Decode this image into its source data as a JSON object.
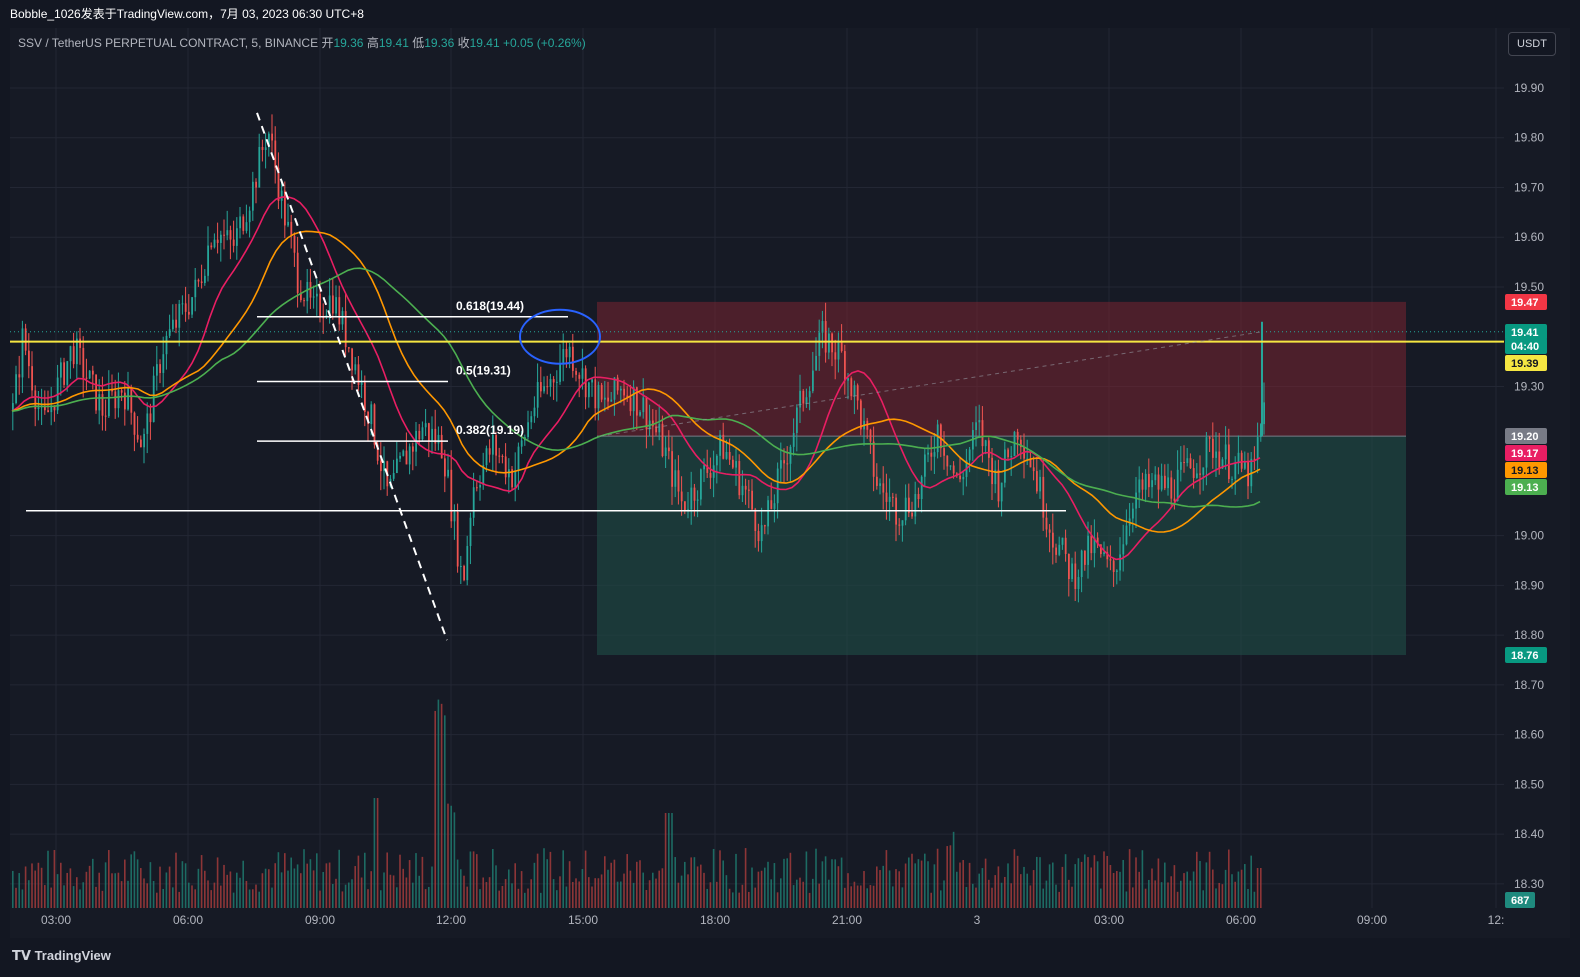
{
  "header": {
    "publisher_line": "Bobble_1026发表于TradingView.com，7月 03, 2023 06:30 UTC+8"
  },
  "legend": {
    "symbol": "SSV / TetherUS PERPETUAL CONTRACT, 5, BINANCE",
    "open_label": "开",
    "open": "19.36",
    "high_label": "高",
    "high": "19.41",
    "low_label": "低",
    "low": "19.36",
    "close_label": "收",
    "close": "19.41",
    "change": "+0.05 (+0.26%)"
  },
  "currency_button": "USDT",
  "footer": {
    "brand": "TradingView"
  },
  "colors": {
    "up": "#26a69a",
    "down": "#ef5350",
    "yellow_line": "#f5e642",
    "ma_pink": "#e91e63",
    "ma_orange": "#ff9800",
    "ma_green": "#4caf50",
    "stop_zone": "#7a2531",
    "target_zone": "#1e4a44"
  },
  "chart_data": {
    "type": "candlestick",
    "symbol": "SSV/USDT perpetual",
    "interval": "5",
    "y_axis": {
      "ticks": [
        "19.90",
        "19.80",
        "19.70",
        "19.60",
        "19.50",
        "19.30",
        "19.00",
        "18.90",
        "18.80",
        "18.70",
        "18.60",
        "18.50",
        "18.40",
        "18.30"
      ],
      "range": [
        18.27,
        19.98
      ]
    },
    "x_axis": {
      "ticks": [
        "03:00",
        "06:00",
        "09:00",
        "12:00",
        "15:00",
        "18:00",
        "21:00",
        "3",
        "03:00",
        "06:00",
        "09:00",
        "12:"
      ]
    },
    "price_path": [
      [
        0,
        19.25
      ],
      [
        10,
        19.4
      ],
      [
        30,
        19.22
      ],
      [
        60,
        19.38
      ],
      [
        90,
        19.25
      ],
      [
        110,
        19.3
      ],
      [
        130,
        19.18
      ],
      [
        150,
        19.38
      ],
      [
        170,
        19.45
      ],
      [
        185,
        19.5
      ],
      [
        200,
        19.62
      ],
      [
        220,
        19.58
      ],
      [
        240,
        19.7
      ],
      [
        255,
        19.82
      ],
      [
        270,
        19.66
      ],
      [
        285,
        19.52
      ],
      [
        300,
        19.45
      ],
      [
        320,
        19.48
      ],
      [
        340,
        19.36
      ],
      [
        360,
        19.22
      ],
      [
        375,
        19.08
      ],
      [
        390,
        19.15
      ],
      [
        410,
        19.22
      ],
      [
        430,
        19.18
      ],
      [
        450,
        18.9
      ],
      [
        460,
        19.1
      ],
      [
        480,
        19.18
      ],
      [
        500,
        19.12
      ],
      [
        520,
        19.26
      ],
      [
        540,
        19.32
      ],
      [
        555,
        19.38
      ],
      [
        570,
        19.32
      ],
      [
        590,
        19.26
      ],
      [
        610,
        19.3
      ],
      [
        630,
        19.26
      ],
      [
        650,
        19.18
      ],
      [
        670,
        19.06
      ],
      [
        690,
        19.12
      ],
      [
        710,
        19.18
      ],
      [
        730,
        19.1
      ],
      [
        750,
        19.0
      ],
      [
        770,
        19.14
      ],
      [
        790,
        19.28
      ],
      [
        810,
        19.4
      ],
      [
        830,
        19.36
      ],
      [
        845,
        19.26
      ],
      [
        865,
        19.1
      ],
      [
        885,
        19.05
      ],
      [
        905,
        19.08
      ],
      [
        925,
        19.22
      ],
      [
        945,
        19.1
      ],
      [
        965,
        19.22
      ],
      [
        985,
        19.1
      ],
      [
        1005,
        19.22
      ],
      [
        1020,
        19.14
      ],
      [
        1040,
        19.0
      ],
      [
        1060,
        18.92
      ],
      [
        1080,
        18.98
      ],
      [
        1100,
        18.92
      ],
      [
        1120,
        19.08
      ],
      [
        1140,
        19.1
      ],
      [
        1160,
        19.1
      ],
      [
        1180,
        19.14
      ],
      [
        1200,
        19.18
      ],
      [
        1220,
        19.14
      ],
      [
        1240,
        19.12
      ],
      [
        1250,
        19.24
      ],
      [
        1260,
        19.41
      ]
    ],
    "moving_averages": [
      {
        "name": "MA pink",
        "last": "19.17"
      },
      {
        "name": "MA orange",
        "last": "19.13"
      },
      {
        "name": "MA green",
        "last": "19.13"
      }
    ],
    "fib_levels": [
      {
        "label": "0.618(19.44)",
        "value": 19.44
      },
      {
        "label": "0.5(19.31)",
        "value": 19.31
      },
      {
        "label": "0.382(19.19)",
        "value": 19.19
      }
    ],
    "horizontal_lines": [
      19.39,
      19.05
    ],
    "position_tool": {
      "stop": 19.47,
      "entry": 19.2,
      "target": 18.76
    },
    "price_tags": [
      {
        "value": "19.47",
        "kind": "stop"
      },
      {
        "value": "19.41",
        "kind": "last"
      },
      {
        "value": "04:40",
        "kind": "countdown"
      },
      {
        "value": "19.39",
        "kind": "line"
      },
      {
        "value": "19.20",
        "kind": "entry"
      },
      {
        "value": "19.17",
        "kind": "ma_pink"
      },
      {
        "value": "19.13",
        "kind": "ma_orange"
      },
      {
        "value": "19.13",
        "kind": "ma_green"
      },
      {
        "value": "18.76",
        "kind": "target"
      },
      {
        "value": "687",
        "kind": "volume"
      }
    ],
    "volume": {
      "last": "687"
    }
  }
}
